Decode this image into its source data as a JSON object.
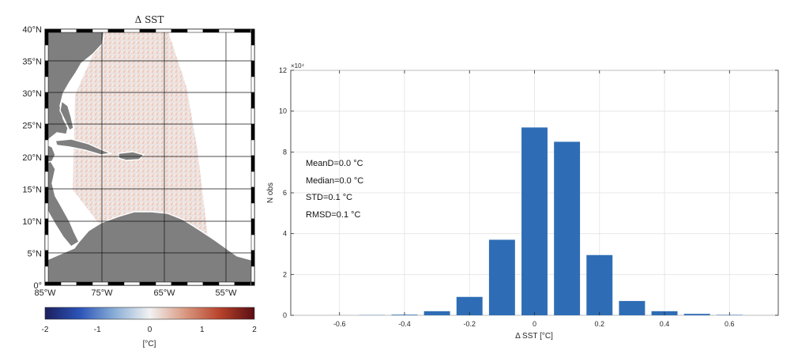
{
  "map": {
    "title": "Δ SST",
    "lat_labels": [
      "40°N",
      "35°N",
      "30°N",
      "25°N",
      "20°N",
      "15°N",
      "10°N",
      "5°N",
      "0°"
    ],
    "lon_labels": [
      "85°W",
      "75°W",
      "65°W",
      "55°W"
    ],
    "colorbar": {
      "ticks": [
        "-2",
        "-1",
        "0",
        "1",
        "2"
      ],
      "label": "[°C]",
      "colors": [
        "#1c1f5e",
        "#2c54b8",
        "#8aaed6",
        "#f2f2f2",
        "#d99a82",
        "#b8432c",
        "#5a0d12"
      ]
    },
    "land_color": "#7f7f7f",
    "ocean_tint": "#f3e6e2"
  },
  "chart_data": {
    "type": "bar",
    "x": [
      -0.6,
      -0.5,
      -0.4,
      -0.3,
      -0.2,
      -0.1,
      0.0,
      0.1,
      0.2,
      0.3,
      0.4,
      0.5,
      0.6
    ],
    "values": [
      0.002,
      0.01,
      0.03,
      0.2,
      0.9,
      3.7,
      9.2,
      8.5,
      2.95,
      0.7,
      0.2,
      0.07,
      0.02
    ],
    "bar_color": "#2e6db5",
    "xlabel": "Δ SST [°C]",
    "ylabel": "N obs",
    "exponent_label": "×10⁴",
    "xlim": [
      -0.75,
      0.75
    ],
    "ylim": [
      0,
      12
    ],
    "xticks": [
      -0.6,
      -0.4,
      -0.2,
      0,
      0.2,
      0.4,
      0.6
    ],
    "xtick_labels": [
      "-0.6",
      "-0.4",
      "-0.2",
      "0",
      "0.2",
      "0.4",
      "0.6"
    ],
    "yticks": [
      0,
      2,
      4,
      6,
      8,
      10,
      12
    ],
    "ytick_labels": [
      "0",
      "2",
      "4",
      "6",
      "8",
      "10",
      "12"
    ],
    "grid": true,
    "stats": [
      "MeanD=0.0 °C",
      "Median=0.0 °C",
      "STD=0.1 °C",
      "RMSD=0.1 °C"
    ]
  }
}
